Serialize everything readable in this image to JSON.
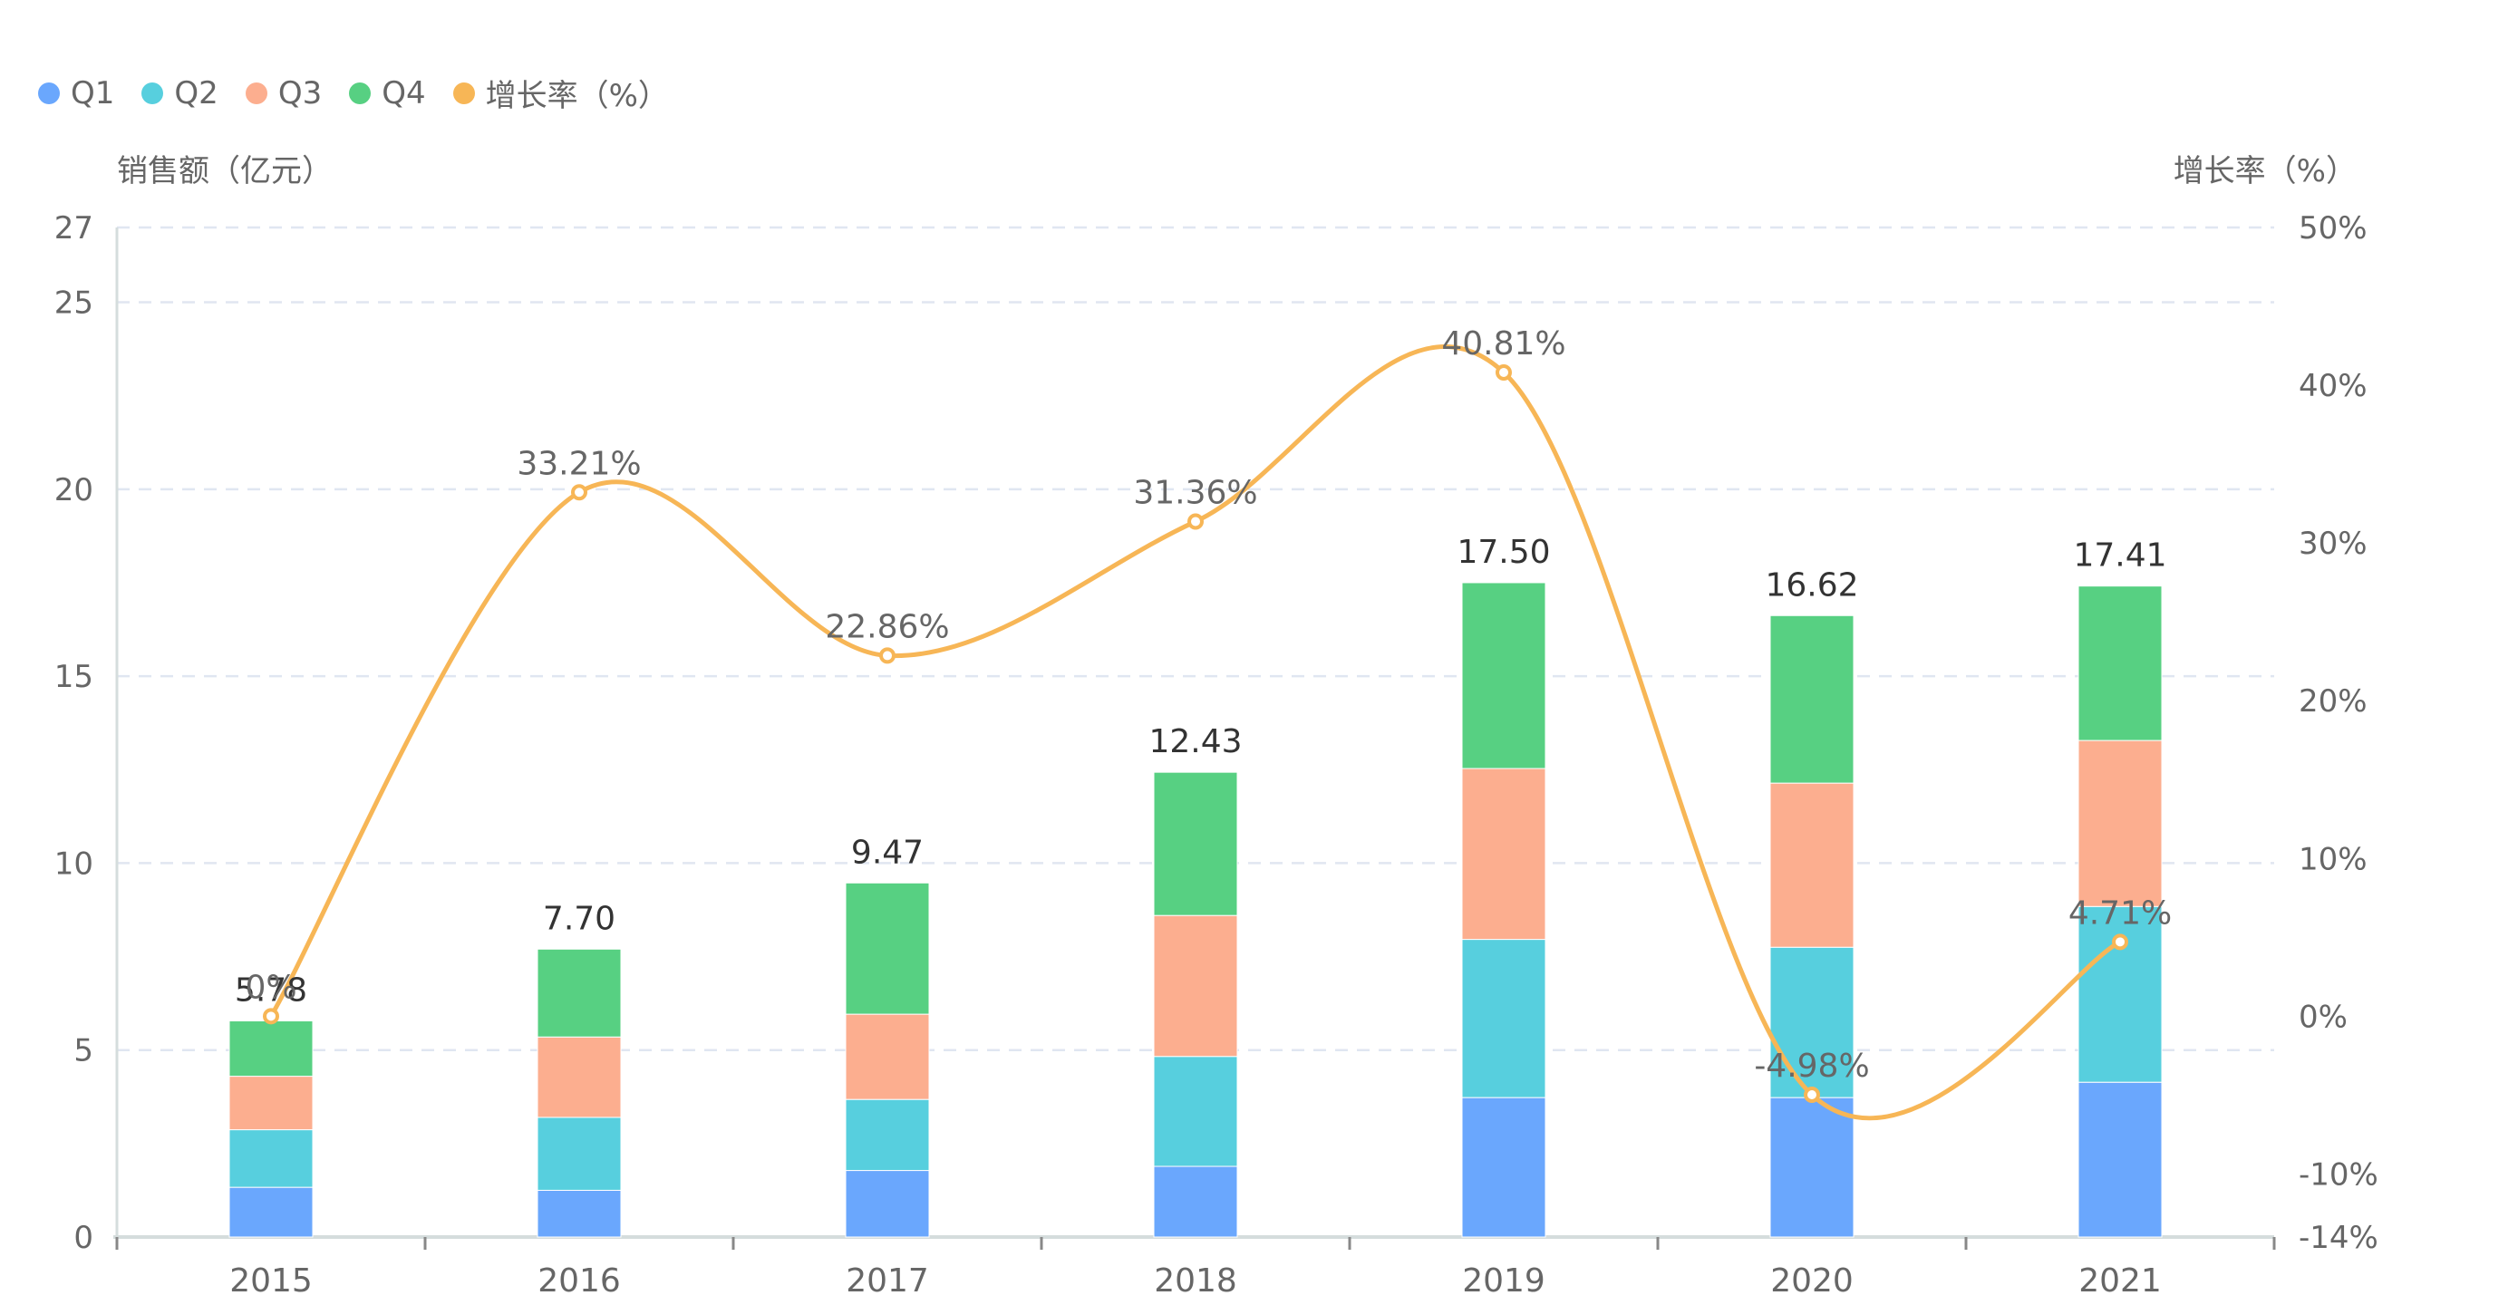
{
  "chart_data": {
    "type": "bar",
    "stacked": true,
    "categories": [
      "2015",
      "2016",
      "2017",
      "2018",
      "2019",
      "2020",
      "2021"
    ],
    "series": [
      {
        "name": "Q1",
        "type": "bar",
        "axis": "left",
        "color": "#6AA7FD",
        "values": [
          1.33,
          1.25,
          1.78,
          1.89,
          3.73,
          3.73,
          4.14
        ]
      },
      {
        "name": "Q2",
        "type": "bar",
        "axis": "left",
        "color": "#57CFDE",
        "values": [
          1.54,
          1.95,
          1.9,
          2.94,
          4.23,
          4.02,
          4.7
        ]
      },
      {
        "name": "Q3",
        "type": "bar",
        "axis": "left",
        "color": "#FCAE8F",
        "values": [
          1.43,
          2.15,
          2.28,
          3.77,
          4.57,
          4.39,
          4.44
        ]
      },
      {
        "name": "Q4",
        "type": "bar",
        "axis": "left",
        "color": "#57D082",
        "values": [
          1.48,
          2.35,
          3.51,
          3.83,
          4.97,
          4.48,
          4.13
        ]
      },
      {
        "name": "增长率（%）",
        "type": "line",
        "smooth": true,
        "axis": "right",
        "color": "#F7B656",
        "values": [
          0,
          33.21,
          22.86,
          31.36,
          40.81,
          -4.98,
          4.71
        ],
        "labels": [
          "0%",
          "33.21%",
          "22.86%",
          "31.36%",
          "40.81%",
          "-4.98%",
          "4.71%"
        ]
      }
    ],
    "totals": [
      5.78,
      7.7,
      9.47,
      12.43,
      17.5,
      16.62,
      17.41
    ],
    "total_labels": [
      "5.78",
      "7.70",
      "9.47",
      "12.43",
      "17.50",
      "16.62",
      "17.41"
    ],
    "title": "",
    "xlabel": "",
    "ylabel": "销售额（亿元）",
    "ylabel_right": "增长率（%）",
    "ylim": [
      0,
      27
    ],
    "yticks": [
      "0",
      "5",
      "10",
      "15",
      "20",
      "25",
      "27"
    ],
    "yticks_values": [
      0,
      5,
      10,
      15,
      20,
      25,
      27
    ],
    "ylim_right": [
      -14,
      50
    ],
    "yticks_right": [
      "-14%",
      "-10%",
      "0%",
      "10%",
      "20%",
      "30%",
      "40%",
      "50%"
    ],
    "yticks_right_values": [
      -14,
      -10,
      0,
      10,
      20,
      30,
      40,
      50
    ],
    "grid": true,
    "legend_position": "top-left"
  },
  "legend": [
    {
      "label": "Q1",
      "color": "#6AA7FD"
    },
    {
      "label": "Q2",
      "color": "#57CFDE"
    },
    {
      "label": "Q3",
      "color": "#FCAE8F"
    },
    {
      "label": "Q4",
      "color": "#57D082"
    },
    {
      "label": "增长率（%）",
      "color": "#F7B656"
    }
  ],
  "colors": {
    "axis_text": "#666666",
    "total_label": "#333333",
    "line_label": "#666666",
    "grid": "#E0E6F1",
    "axis_line": "#D5DDDD"
  }
}
